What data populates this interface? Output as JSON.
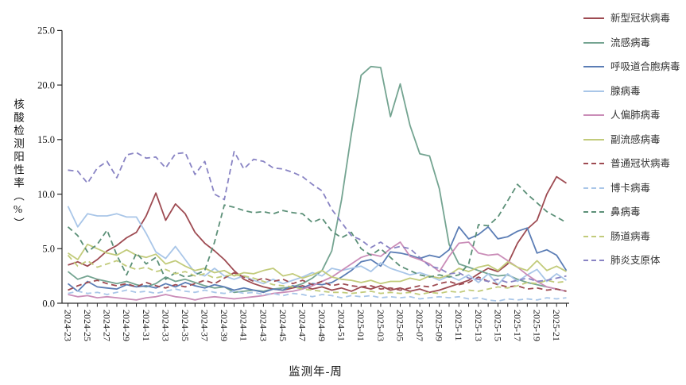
{
  "page": {
    "background": "#FFFFFF",
    "axis_color": "#2a2a2a",
    "tick_label_color": "#1a1a1a"
  },
  "chart_data": {
    "type": "line",
    "title": "",
    "xlabel": "监测年-周",
    "ylabel": "核酸检测阳性率（%）",
    "ylim": [
      0,
      25
    ],
    "yticks": [
      0,
      5,
      10,
      15,
      20,
      25
    ],
    "ytick_labels": [
      "0.0",
      "5.0",
      "10.0",
      "15.0",
      "20.0",
      "25.0"
    ],
    "x_label_every": 2,
    "grid": false,
    "legend_position": "right",
    "x": [
      "2024-23",
      "2024-24",
      "2024-25",
      "2024-26",
      "2024-27",
      "2024-28",
      "2024-29",
      "2024-30",
      "2024-31",
      "2024-32",
      "2024-33",
      "2024-34",
      "2024-35",
      "2024-36",
      "2024-37",
      "2024-38",
      "2024-39",
      "2024-40",
      "2024-41",
      "2024-42",
      "2024-43",
      "2024-44",
      "2024-45",
      "2024-46",
      "2024-47",
      "2024-48",
      "2024-49",
      "2024-50",
      "2024-51",
      "2024-52",
      "2025-01",
      "2025-02",
      "2025-03",
      "2025-04",
      "2025-05",
      "2025-06",
      "2025-07",
      "2025-08",
      "2025-09",
      "2025-10",
      "2025-11",
      "2025-12",
      "2025-13",
      "2025-14",
      "2025-15",
      "2025-16",
      "2025-17",
      "2025-18",
      "2025-19",
      "2025-20",
      "2025-21",
      "2025-22"
    ],
    "series": [
      {
        "name": "新型冠状病毒",
        "color": "#9E4B52",
        "dash": false,
        "values": [
          3.5,
          3.8,
          3.4,
          4.0,
          4.8,
          5.3,
          6.0,
          6.5,
          8.0,
          10.1,
          7.6,
          9.1,
          8.2,
          6.5,
          5.5,
          4.8,
          4.0,
          3.0,
          2.2,
          1.8,
          1.5,
          1.3,
          1.2,
          1.4,
          1.6,
          1.3,
          1.5,
          1.2,
          1.4,
          1.1,
          1.5,
          1.3,
          1.6,
          1.2,
          1.4,
          1.1,
          1.3,
          1.0,
          1.2,
          1.5,
          1.8,
          2.1,
          2.7,
          3.2,
          2.9,
          3.6,
          5.5,
          6.8,
          7.6,
          10.0,
          11.6,
          11.0
        ]
      },
      {
        "name": "流感病毒",
        "color": "#74A491",
        "dash": false,
        "values": [
          2.9,
          2.2,
          2.5,
          2.2,
          2.0,
          1.8,
          2.0,
          1.7,
          1.5,
          1.8,
          2.4,
          2.0,
          2.2,
          1.9,
          1.6,
          1.4,
          1.5,
          1.0,
          1.1,
          1.2,
          1.1,
          1.3,
          1.4,
          1.5,
          1.8,
          2.3,
          3.0,
          4.8,
          9.5,
          15.5,
          20.9,
          21.7,
          21.6,
          17.1,
          20.1,
          16.3,
          13.7,
          13.5,
          10.5,
          5.4,
          3.6,
          3.3,
          3.0,
          2.7,
          2.5,
          2.6,
          2.2,
          1.9,
          1.7,
          1.5,
          1.3,
          1.1
        ]
      },
      {
        "name": "呼吸道合胞病毒",
        "color": "#5B7DB5",
        "dash": false,
        "values": [
          1.8,
          1.1,
          2.0,
          1.5,
          1.4,
          1.3,
          1.7,
          1.5,
          1.6,
          1.4,
          1.8,
          1.5,
          1.9,
          1.6,
          1.4,
          1.7,
          1.5,
          1.2,
          1.4,
          1.2,
          1.0,
          1.3,
          1.2,
          1.6,
          1.4,
          1.8,
          1.7,
          1.9,
          2.4,
          3.0,
          3.8,
          4.0,
          3.4,
          4.7,
          4.6,
          4.4,
          4.1,
          4.4,
          4.2,
          4.9,
          7.0,
          5.9,
          6.3,
          7.0,
          5.9,
          6.1,
          6.6,
          6.9,
          4.6,
          4.9,
          4.4,
          3.0
        ]
      },
      {
        "name": "腺病毒",
        "color": "#A9C6E8",
        "dash": false,
        "values": [
          8.9,
          7.0,
          8.2,
          8.0,
          8.0,
          8.2,
          7.9,
          7.9,
          6.4,
          4.7,
          4.1,
          5.2,
          4.0,
          2.8,
          2.5,
          3.2,
          2.5,
          2.2,
          2.5,
          2.1,
          1.8,
          2.2,
          1.8,
          2.1,
          2.4,
          2.8,
          2.5,
          3.2,
          3.0,
          3.2,
          3.4,
          2.9,
          3.7,
          3.2,
          2.9,
          2.6,
          2.8,
          2.5,
          2.1,
          2.5,
          2.1,
          2.6,
          1.9,
          2.7,
          1.7,
          2.7,
          2.0,
          2.6,
          3.1,
          2.0,
          2.7,
          2.1
        ]
      },
      {
        "name": "人偏肺病毒",
        "color": "#CA8DB8",
        "dash": false,
        "values": [
          0.8,
          0.6,
          0.7,
          0.5,
          0.6,
          0.5,
          0.4,
          0.3,
          0.5,
          0.6,
          0.8,
          0.6,
          0.5,
          0.3,
          0.5,
          0.6,
          0.5,
          0.4,
          0.5,
          0.6,
          0.7,
          0.9,
          1.0,
          1.1,
          1.3,
          1.6,
          2.0,
          2.4,
          3.0,
          3.6,
          4.2,
          4.5,
          4.3,
          5.0,
          5.6,
          4.3,
          4.0,
          3.6,
          2.9,
          4.3,
          5.5,
          5.6,
          4.6,
          4.4,
          4.5,
          3.9,
          3.3,
          2.6,
          2.0,
          1.5,
          1.3,
          1.1
        ]
      },
      {
        "name": "副流感病毒",
        "color": "#C2CB7B",
        "dash": false,
        "values": [
          4.6,
          4.0,
          5.4,
          5.0,
          4.6,
          4.4,
          4.9,
          4.4,
          4.2,
          4.5,
          3.6,
          3.9,
          3.4,
          3.0,
          3.2,
          2.8,
          3.0,
          2.5,
          2.8,
          2.7,
          3.0,
          3.2,
          2.5,
          2.7,
          2.3,
          2.6,
          3.0,
          2.4,
          2.2,
          2.1,
          1.9,
          2.1,
          1.8,
          2.0,
          2.0,
          2.3,
          2.1,
          2.5,
          2.3,
          2.6,
          3.2,
          2.9,
          3.3,
          3.5,
          3.0,
          3.8,
          3.3,
          3.0,
          3.9,
          3.0,
          3.4,
          2.9
        ]
      },
      {
        "name": "普通冠状病毒",
        "color": "#9E4B52",
        "dash": true,
        "values": [
          1.2,
          1.6,
          1.9,
          2.1,
          1.8,
          1.6,
          1.8,
          1.5,
          1.9,
          1.6,
          1.4,
          1.7,
          1.5,
          1.8,
          2.1,
          1.8,
          2.3,
          2.8,
          2.4,
          2.0,
          2.3,
          2.0,
          2.2,
          1.8,
          2.1,
          1.7,
          2.0,
          1.6,
          1.8,
          1.6,
          1.5,
          1.6,
          1.3,
          1.4,
          1.2,
          1.4,
          1.6,
          1.5,
          1.8,
          2.0,
          1.7,
          1.9,
          2.4,
          2.0,
          1.7,
          1.5,
          1.6,
          1.3,
          1.4,
          1.2,
          1.3,
          1.1
        ]
      },
      {
        "name": "博卡病毒",
        "color": "#A9C6E8",
        "dash": true,
        "values": [
          0.9,
          1.1,
          0.9,
          1.0,
          0.8,
          1.0,
          1.2,
          1.0,
          1.1,
          0.9,
          1.1,
          1.3,
          1.1,
          1.0,
          1.2,
          1.0,
          0.9,
          1.1,
          0.9,
          1.0,
          0.8,
          0.9,
          0.7,
          0.9,
          0.8,
          0.6,
          0.8,
          0.7,
          0.5,
          0.7,
          0.6,
          0.7,
          0.5,
          0.6,
          0.5,
          0.6,
          0.4,
          0.5,
          0.6,
          0.5,
          0.6,
          0.4,
          0.5,
          0.3,
          0.2,
          0.4,
          0.3,
          0.4,
          0.3,
          0.5,
          0.4,
          0.5
        ]
      },
      {
        "name": "鼻病毒",
        "color": "#5C9078",
        "dash": true,
        "values": [
          7.0,
          6.2,
          4.7,
          5.4,
          6.7,
          4.4,
          2.6,
          4.6,
          3.6,
          4.2,
          2.2,
          2.8,
          2.4,
          2.6,
          3.0,
          5.6,
          9.0,
          8.8,
          8.5,
          8.3,
          8.4,
          8.2,
          8.5,
          8.3,
          8.2,
          7.4,
          7.8,
          6.6,
          6.0,
          6.5,
          5.0,
          4.4,
          5.0,
          4.2,
          3.4,
          3.0,
          2.6,
          2.4,
          2.6,
          2.4,
          2.6,
          3.6,
          7.2,
          7.1,
          7.9,
          9.4,
          10.9,
          10.0,
          9.2,
          8.4,
          7.9,
          7.4
        ]
      },
      {
        "name": "肠道病毒",
        "color": "#C2CB7B",
        "dash": true,
        "values": [
          4.4,
          3.4,
          3.9,
          3.3,
          3.6,
          3.9,
          3.4,
          3.1,
          3.3,
          2.9,
          3.1,
          2.7,
          2.9,
          2.5,
          2.7,
          2.3,
          2.5,
          2.6,
          2.5,
          2.3,
          2.0,
          1.7,
          1.6,
          1.5,
          1.3,
          1.2,
          1.1,
          1.0,
          1.0,
          0.9,
          1.0,
          1.1,
          0.9,
          1.0,
          0.9,
          1.0,
          0.8,
          1.0,
          0.9,
          1.1,
          1.0,
          1.2,
          1.1,
          1.3,
          1.5,
          1.4,
          1.6,
          1.9,
          1.8,
          2.1,
          1.9,
          2.0
        ]
      },
      {
        "name": "肺炎支原体",
        "color": "#8984C4",
        "dash": true,
        "values": [
          12.2,
          12.1,
          11.0,
          12.4,
          13.0,
          11.5,
          13.6,
          13.8,
          13.3,
          13.4,
          12.4,
          13.7,
          13.8,
          11.8,
          13.0,
          10.0,
          9.5,
          13.9,
          12.3,
          13.2,
          13.0,
          12.4,
          12.3,
          12.0,
          11.6,
          10.9,
          10.3,
          8.6,
          7.4,
          6.2,
          5.8,
          5.1,
          5.6,
          5.0,
          5.2,
          5.0,
          4.2,
          3.4,
          3.2,
          2.7,
          2.8,
          2.3,
          2.2,
          2.0,
          2.2,
          1.9,
          2.1,
          2.3,
          2.0,
          2.1,
          2.3,
          2.5
        ]
      }
    ]
  }
}
